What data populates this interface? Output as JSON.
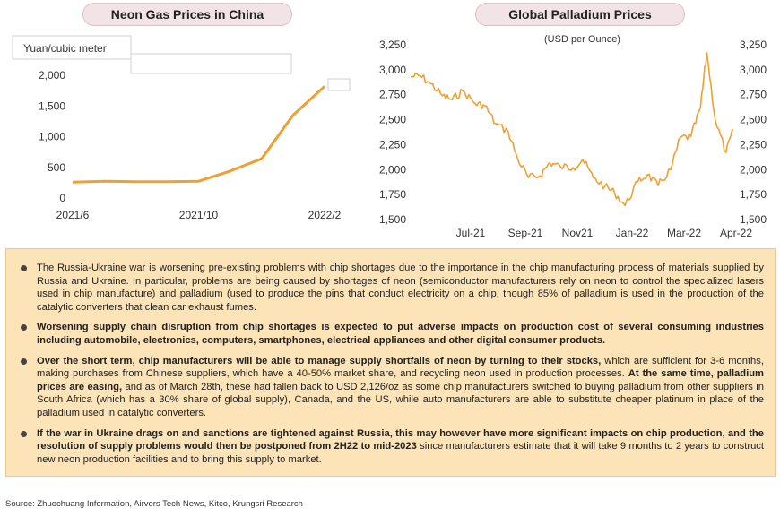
{
  "chart_data": [
    {
      "type": "line",
      "title": "Neon Gas Prices in China",
      "ylabel": "Yuan/cubic meter",
      "x_tick_labels": [
        "2021/6",
        "2021/10",
        "2022/2"
      ],
      "y_ticks": [
        0,
        500,
        1000,
        1500,
        2000
      ],
      "ylim": [
        0,
        2000
      ],
      "x": [
        "2021/6",
        "2021/7",
        "2021/8",
        "2021/9",
        "2021/10",
        "2021/11",
        "2021/12",
        "2022/1",
        "2022/2"
      ],
      "values": [
        260,
        275,
        265,
        265,
        275,
        440,
        640,
        1350,
        1820
      ],
      "series_color": "#f0a030",
      "grid": false,
      "legend": "none"
    },
    {
      "type": "line",
      "title": "Global Palladium Prices",
      "subtitle": "(USD per Ounce)",
      "x_tick_labels": [
        "Jul-21",
        "Sep-21",
        "Nov21",
        "Jan-22",
        "Mar-22",
        "Apr-22"
      ],
      "y_ticks": [
        1500,
        1750,
        2000,
        2250,
        2500,
        2750,
        3000,
        3250
      ],
      "ylim": [
        1500,
        3250
      ],
      "axes": "left-and-right",
      "series_color": "#f0a030",
      "grid": false,
      "legend": "none",
      "x": [
        "2021-06-01",
        "2021-06-10",
        "2021-06-20",
        "2021-07-01",
        "2021-07-10",
        "2021-07-20",
        "2021-08-01",
        "2021-08-10",
        "2021-08-20",
        "2021-09-01",
        "2021-09-10",
        "2021-09-20",
        "2021-10-01",
        "2021-10-10",
        "2021-10-20",
        "2021-11-01",
        "2021-11-10",
        "2021-11-20",
        "2021-12-01",
        "2021-12-10",
        "2021-12-20",
        "2022-01-01",
        "2022-01-10",
        "2022-01-20",
        "2022-02-01",
        "2022-02-10",
        "2022-02-20",
        "2022-03-01",
        "2022-03-07",
        "2022-03-15",
        "2022-03-25",
        "2022-04-01"
      ],
      "values": [
        2930,
        2940,
        2860,
        2740,
        2700,
        2790,
        2660,
        2640,
        2460,
        2380,
        2100,
        1920,
        1940,
        2070,
        2030,
        2020,
        2100,
        1920,
        1830,
        1770,
        1640,
        1880,
        1950,
        1840,
        2000,
        2320,
        2330,
        2620,
        3170,
        2490,
        2170,
        2400
      ]
    }
  ],
  "bullets": [
    {
      "parts": [
        {
          "text": "The Russia-Ukraine war is worsening pre-existing problems with chip shortages due to the importance in the chip manufacturing process of materials supplied by Russia and Ukraine. In particular, problems are being caused by shortages of neon (semiconductor manufacturers rely on neon to control the specialized lasers used in chip manufacture) and palladium (used to produce the pins that conduct electricity on a chip, though 85% of palladium is used in the production of the catalytic converters that clean car exhaust fumes.",
          "bold": false
        }
      ]
    },
    {
      "parts": [
        {
          "text": "Worsening supply chain disruption from chip shortages is expected to put adverse impacts on production cost of several consuming industries including automobile, electronics, computers, smartphones, electrical appliances and other digital consumer products.",
          "bold": true
        }
      ]
    },
    {
      "parts": [
        {
          "text": "Over the short term, chip manufacturers will be able to manage supply shortfalls of neon by turning to their stocks,",
          "bold": true
        },
        {
          "text": " which are sufficient for 3-6 months, making purchases from Chinese suppliers, which have a 40-50% market share, and recycling neon used in production processes. ",
          "bold": false
        },
        {
          "text": "At the same time, palladium prices are easing,",
          "bold": true
        },
        {
          "text": " and as of March 28th, these had fallen back to USD 2,126/oz as some chip manufacturers switched to buying palladium from other suppliers in South Africa (which has a 30% share of global supply), Canada, and the US, while auto manufacturers are able to substitute cheaper platinum in place of the palladium used in catalytic converters.",
          "bold": false
        }
      ]
    },
    {
      "parts": [
        {
          "text": "If the war in Ukraine drags on and sanctions are tightened against Russia, this may however have more significant impacts on chip production, and  the resolution of supply problems would then be postponed from 2H22 to mid-2023",
          "bold": true
        },
        {
          "text": " since manufacturers estimate that it will take 9 months to 2 years to construct new neon production facilities and to bring this supply to market.",
          "bold": false
        }
      ]
    }
  ],
  "source": "Source: Zhuochuang Information, Airvers Tech News, Kitco, Krungsri Research"
}
